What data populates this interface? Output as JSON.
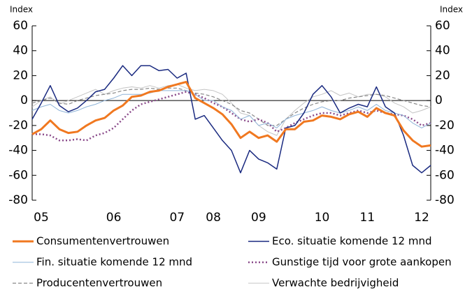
{
  "chart_data": {
    "type": "line",
    "y_label": "Index",
    "y2_label": "Index",
    "categories": [
      null,
      "05",
      null,
      null,
      null,
      null,
      null,
      null,
      null,
      "06",
      null,
      null,
      null,
      null,
      null,
      null,
      "07",
      null,
      null,
      null,
      "08",
      null,
      null,
      null,
      null,
      "09",
      null,
      null,
      null,
      null,
      null,
      null,
      "10",
      null,
      null,
      null,
      null,
      "11",
      null,
      null,
      null,
      null,
      null,
      "12",
      null
    ],
    "ylim": [
      -80,
      60
    ],
    "yticks": [
      -80,
      -60,
      -40,
      -20,
      0,
      20,
      40,
      60
    ],
    "y2lim": [
      -80,
      60
    ],
    "y2ticks": [
      -80,
      -60,
      -40,
      -20,
      0,
      20,
      40,
      60
    ],
    "series": [
      {
        "name": "Consumentenvertrouwen",
        "color": "#f07820",
        "width": 3,
        "style": "solid",
        "values": [
          -27,
          -23,
          -16,
          -23,
          -26,
          -25,
          -20,
          -16,
          -14,
          -8,
          -4,
          3,
          4,
          7,
          8,
          11,
          13,
          15,
          2,
          -2,
          -6,
          -11,
          -19,
          -30,
          -25,
          -30,
          -28,
          -33,
          -23,
          -23,
          -17,
          -16,
          -12,
          -13,
          -15,
          -11,
          -9,
          -13,
          -6,
          -10,
          -12,
          -24,
          -32,
          -37,
          -36
        ]
      },
      {
        "name": "Eco. situatie komende 12 mnd",
        "color": "#1a2a80",
        "width": 1.5,
        "style": "solid",
        "values": [
          -15,
          -2,
          12,
          -4,
          -9,
          -6,
          0,
          7,
          9,
          18,
          28,
          20,
          28,
          28,
          24,
          25,
          18,
          22,
          -15,
          -12,
          -22,
          -32,
          -40,
          -58,
          -40,
          -47,
          -50,
          -55,
          -22,
          -20,
          -10,
          5,
          12,
          3,
          -10,
          -6,
          -3,
          -5,
          11,
          -5,
          -10,
          -28,
          -52,
          -58,
          -52
        ]
      },
      {
        "name": "Fin. situatie komende 12 mnd",
        "color": "#8fb4d8",
        "width": 1,
        "style": "solid",
        "values": [
          -8,
          -5,
          -3,
          -8,
          -10,
          -8,
          -5,
          -3,
          0,
          2,
          5,
          5,
          5,
          6,
          8,
          8,
          8,
          8,
          5,
          0,
          0,
          -5,
          -8,
          -15,
          -12,
          -20,
          -18,
          -22,
          -15,
          -12,
          -10,
          -8,
          -5,
          -8,
          -10,
          -8,
          -5,
          -8,
          -3,
          -8,
          -10,
          -12,
          -18,
          -22,
          -18
        ]
      },
      {
        "name": "Gunstige tijd voor grote aankopen",
        "color": "#8a4a8a",
        "width": 2.5,
        "style": "dotted",
        "values": [
          -27,
          -27,
          -28,
          -32,
          -32,
          -31,
          -32,
          -28,
          -26,
          -22,
          -15,
          -8,
          -3,
          -1,
          1,
          3,
          5,
          7,
          5,
          2,
          -2,
          -5,
          -10,
          -15,
          -17,
          -15,
          -18,
          -25,
          -22,
          -18,
          -15,
          -12,
          -10,
          -10,
          -12,
          -10,
          -8,
          -10,
          -8,
          -10,
          -11,
          -12,
          -15,
          -20,
          -18
        ]
      },
      {
        "name": "Producentenvertrouwen",
        "color": "#888888",
        "width": 1.2,
        "style": "dashed",
        "values": [
          -2,
          0,
          2,
          -2,
          -3,
          0,
          2,
          4,
          5,
          6,
          8,
          9,
          9,
          10,
          9,
          10,
          10,
          8,
          6,
          5,
          3,
          0,
          -3,
          -8,
          -10,
          -15,
          -20,
          -20,
          -15,
          -10,
          -6,
          -3,
          -1,
          0,
          0,
          2,
          3,
          4,
          5,
          4,
          2,
          0,
          -2,
          -4,
          -5
        ]
      },
      {
        "name": "Verwachte bedrijvigheid",
        "color": "#c4c4c4",
        "width": 1,
        "style": "solid",
        "values": [
          -5,
          0,
          3,
          -3,
          0,
          3,
          6,
          9,
          5,
          8,
          10,
          11,
          10,
          12,
          10,
          12,
          13,
          10,
          8,
          9,
          8,
          5,
          -2,
          -10,
          -12,
          -20,
          -25,
          -28,
          -15,
          -8,
          -2,
          3,
          5,
          8,
          4,
          6,
          3,
          5,
          5,
          3,
          -2,
          -5,
          -10,
          -8,
          -5
        ]
      }
    ]
  }
}
